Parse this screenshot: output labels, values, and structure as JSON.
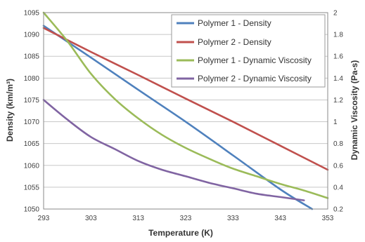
{
  "chart_data": {
    "type": "line",
    "xlabel": "Temperature (K)",
    "ylabel_left": "Density (km/m³)",
    "ylabel_right": "Dynamic Viscosity (Pa-s)",
    "x_ticks": [
      "293",
      "303",
      "313",
      "323",
      "333",
      "343",
      "353"
    ],
    "y_left_ticks": [
      "1050",
      "1055",
      "1060",
      "1065",
      "1070",
      "1075",
      "1080",
      "1085",
      "1090",
      "1095"
    ],
    "y_right_ticks": [
      "0.2",
      "0.4",
      "0.6",
      "0.8",
      "1",
      "1.2",
      "1.4",
      "1.6",
      "1.8",
      "2"
    ],
    "xlim": [
      293,
      353
    ],
    "ylim_left": [
      1050,
      1095
    ],
    "ylim_right": [
      0.2,
      2.0
    ],
    "grid": "horizontal",
    "legend_position": "top-right",
    "series": [
      {
        "name": "Polymer 1 - Density",
        "axis": "left",
        "color": "#4F81BD",
        "x": [
          293,
          303,
          313,
          323,
          333,
          343,
          349.7
        ],
        "values": [
          1092,
          1084.7,
          1077.3,
          1070,
          1062.3,
          1054.5,
          1050
        ]
      },
      {
        "name": "Polymer 2 - Density",
        "axis": "left",
        "color": "#C0504D",
        "x": [
          293,
          303,
          313,
          323,
          333,
          343,
          353
        ],
        "values": [
          1091.5,
          1086,
          1080.7,
          1075.3,
          1070,
          1064.5,
          1059
        ]
      },
      {
        "name": "Polymer 1 - Dynamic Viscosity",
        "axis": "right",
        "color": "#9BBB59",
        "x": [
          293,
          298,
          303,
          308,
          313,
          318,
          323,
          328,
          333,
          338,
          343,
          348,
          353
        ],
        "values": [
          2.0,
          1.74,
          1.44,
          1.21,
          1.03,
          0.88,
          0.76,
          0.66,
          0.57,
          0.5,
          0.43,
          0.37,
          0.3
        ]
      },
      {
        "name": "Polymer 2 - Dynamic Viscosity",
        "axis": "right",
        "color": "#8064A2",
        "x": [
          293,
          298,
          303,
          308,
          313,
          318,
          323,
          328,
          333,
          338,
          343,
          348
        ],
        "values": [
          1.2,
          1.02,
          0.86,
          0.75,
          0.64,
          0.56,
          0.5,
          0.44,
          0.39,
          0.34,
          0.31,
          0.28
        ]
      }
    ]
  }
}
